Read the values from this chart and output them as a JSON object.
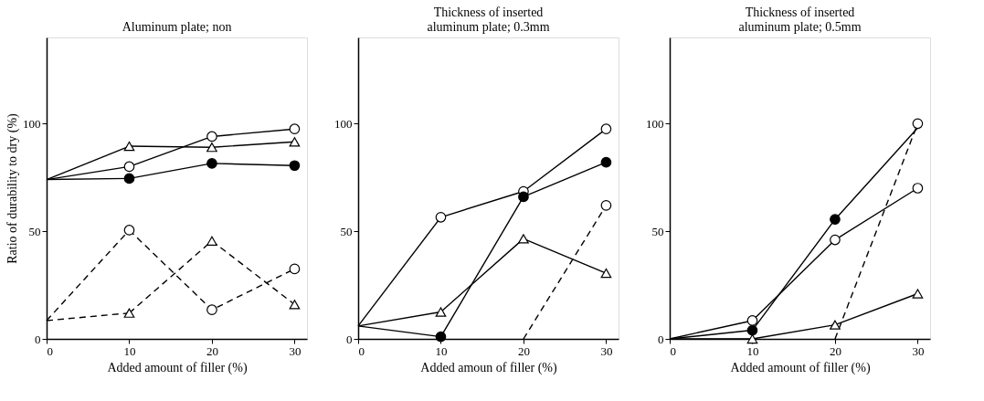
{
  "chart_data": [
    {
      "type": "line",
      "title": "Aluminum plate; non",
      "xlabel": "Added amount of filler (%)",
      "ylabel": "Ratio of durability to dry (%)",
      "xlim": [
        0,
        31.5
      ],
      "ylim": [
        0,
        140
      ],
      "xticks": [
        0,
        10,
        20,
        30
      ],
      "yticks": [
        0,
        50,
        100
      ],
      "grid": false,
      "series": [
        {
          "color": "#000000",
          "marker": "circle",
          "line_style": "solid",
          "x": [
            10,
            20,
            30
          ],
          "values": [
            80,
            94,
            97.5
          ]
        },
        {
          "color": "#000000",
          "marker": "triangle",
          "line_style": "solid",
          "x": [
            10,
            20,
            30
          ],
          "values": [
            89.5,
            89,
            91.5
          ]
        },
        {
          "color": "#000000",
          "marker": "none",
          "line_style": "solid",
          "x": [
            10,
            20,
            30
          ],
          "values": [
            74.5,
            81.5,
            80.5
          ]
        },
        {
          "type": "scatter",
          "color": "#000000",
          "marker": "circle",
          "x": [
            10,
            20,
            30
          ],
          "values": [
            74.5,
            81.5,
            80.5
          ]
        },
        {
          "color": "#000000",
          "marker": "circle",
          "line_style": "dashed",
          "x": [
            10,
            20,
            30
          ],
          "values": [
            50.5,
            13.5,
            32.5
          ]
        },
        {
          "color": "#000000",
          "marker": "triangle",
          "line_style": "dashed",
          "x": [
            10,
            20,
            30
          ],
          "values": [
            12,
            45.5,
            16
          ]
        },
        {
          "color": "#000000",
          "marker": "none",
          "line_style": "solid",
          "x": [
            0,
            10
          ],
          "values": [
            74,
            80
          ]
        },
        {
          "color": "#000000",
          "marker": "none",
          "line_style": "solid",
          "x": [
            0,
            10
          ],
          "values": [
            74,
            89.5
          ]
        },
        {
          "color": "#000000",
          "marker": "none",
          "line_style": "solid",
          "x": [
            0,
            10
          ],
          "values": [
            74,
            74.5
          ]
        },
        {
          "color": "#000000",
          "marker": "none",
          "line_style": "dashed",
          "x": [
            0,
            10
          ],
          "values": [
            8.5,
            50.5
          ]
        },
        {
          "color": "#000000",
          "marker": "none",
          "line_style": "dashed",
          "x": [
            0,
            10
          ],
          "values": [
            8.5,
            12
          ]
        }
      ]
    },
    {
      "type": "line",
      "title": "Thickness of inserted\naluminum plate; 0.3mm",
      "xlabel": "Added amoun of filler (%)",
      "xlim": [
        0,
        31.5
      ],
      "ylim": [
        0,
        140
      ],
      "xticks": [
        0,
        10,
        20,
        30
      ],
      "yticks": [
        0,
        50,
        100
      ],
      "grid": false,
      "series": [
        {
          "color": "#000000",
          "marker": "circle",
          "line_style": "solid",
          "x": [
            10,
            20,
            30
          ],
          "values": [
            56.5,
            68.5,
            97.5
          ]
        },
        {
          "color": "#000000",
          "marker": "none",
          "line_style": "solid",
          "x": [
            10,
            20,
            30
          ],
          "values": [
            1,
            66,
            82
          ]
        },
        {
          "type": "scatter",
          "color": "#000000",
          "marker": "circle",
          "x": [
            10,
            20,
            30
          ],
          "values": [
            1,
            66,
            82
          ]
        },
        {
          "color": "#000000",
          "marker": "triangle",
          "line_style": "solid",
          "x": [
            10,
            20,
            30
          ],
          "values": [
            12.5,
            46.5,
            30.5
          ]
        },
        {
          "color": "#000000",
          "marker": "circle",
          "line_style": "dashed",
          "x": [
            30
          ],
          "values": [
            62
          ]
        },
        {
          "color": "#000000",
          "marker": "none",
          "line_style": "solid",
          "x": [
            0,
            10
          ],
          "values": [
            6,
            56.5
          ]
        },
        {
          "color": "#000000",
          "marker": "none",
          "line_style": "solid",
          "x": [
            0,
            10
          ],
          "values": [
            6,
            1
          ]
        },
        {
          "color": "#000000",
          "marker": "none",
          "line_style": "solid",
          "x": [
            0,
            10
          ],
          "values": [
            6,
            12.5
          ]
        },
        {
          "color": "#000000",
          "marker": "none",
          "line_style": "dashed",
          "x": [
            20,
            30
          ],
          "values": [
            0,
            62
          ]
        }
      ]
    },
    {
      "type": "line",
      "title": "Thickness of inserted\naluminum plate; 0.5mm",
      "xlabel": "Added amount of filler (%)",
      "xlim": [
        0,
        31.5
      ],
      "ylim": [
        0,
        140
      ],
      "xticks": [
        0,
        10,
        20,
        30
      ],
      "yticks": [
        0,
        50,
        100
      ],
      "grid": false,
      "series": [
        {
          "color": "#000000",
          "marker": "none",
          "line_style": "solid",
          "x": [
            10,
            20,
            30
          ],
          "values": [
            4,
            55.5,
            98
          ]
        },
        {
          "type": "scatter",
          "color": "#000000",
          "marker": "circle",
          "x": [
            10,
            20
          ],
          "values": [
            4,
            55.5
          ]
        },
        {
          "color": "#000000",
          "marker": "circle",
          "line_style": "solid",
          "x": [
            10,
            20,
            30
          ],
          "values": [
            8.5,
            46,
            70
          ]
        },
        {
          "color": "#000000",
          "marker": "triangle",
          "line_style": "solid",
          "x": [
            10,
            20,
            30
          ],
          "values": [
            0,
            6.5,
            21
          ]
        },
        {
          "color": "#000000",
          "marker": "circle",
          "line_style": "dashed",
          "x": [
            30
          ],
          "values": [
            100
          ]
        },
        {
          "color": "#000000",
          "marker": "none",
          "line_style": "solid",
          "x": [
            0,
            10
          ],
          "values": [
            0,
            4
          ]
        },
        {
          "color": "#000000",
          "marker": "none",
          "line_style": "solid",
          "x": [
            0,
            10
          ],
          "values": [
            0,
            8.5
          ]
        },
        {
          "color": "#000000",
          "marker": "none",
          "line_style": "solid",
          "x": [
            0,
            10
          ],
          "values": [
            0,
            0
          ]
        },
        {
          "color": "#000000",
          "marker": "none",
          "line_style": "dashed",
          "x": [
            20,
            30
          ],
          "values": [
            0,
            100
          ]
        }
      ]
    }
  ]
}
